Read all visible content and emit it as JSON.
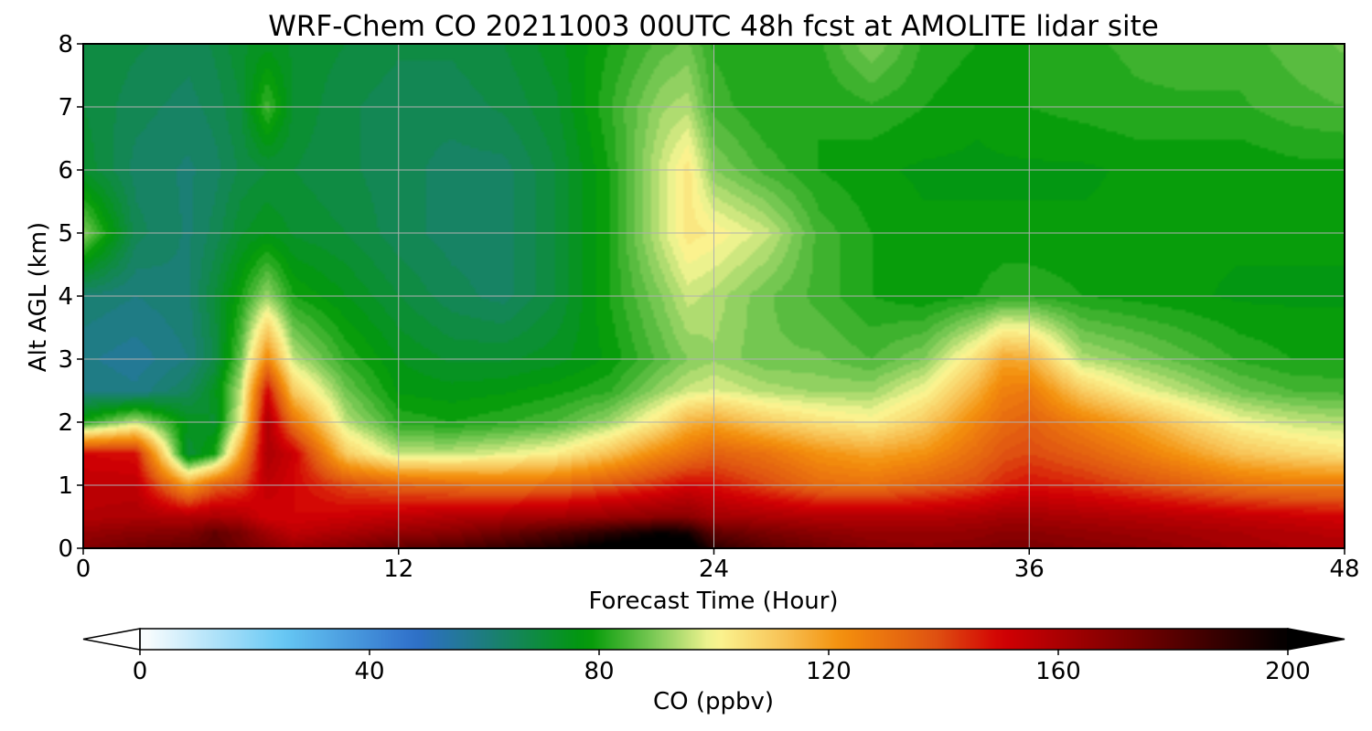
{
  "chart_data": {
    "type": "heatmap",
    "title": "WRF-Chem CO  20211003 00UTC 48h fcst at AMOLITE lidar site",
    "xlabel": "Forecast Time (Hour)",
    "ylabel": "Alt AGL (km)",
    "xlim": [
      0,
      48
    ],
    "ylim": [
      0,
      8
    ],
    "x_ticks": [
      0,
      12,
      24,
      36,
      48
    ],
    "y_ticks": [
      0,
      1,
      2,
      3,
      4,
      5,
      6,
      7,
      8
    ],
    "grid": true,
    "x": [
      0,
      2,
      4,
      5,
      6,
      7,
      8,
      10,
      12,
      14,
      16,
      18,
      20,
      22,
      23,
      24,
      26,
      28,
      30,
      32,
      34,
      35,
      36,
      38,
      40,
      42,
      44,
      46,
      48
    ],
    "y": [
      0,
      0.25,
      0.5,
      1.0,
      1.5,
      2.0,
      2.5,
      3.0,
      4.0,
      5.0,
      6.0,
      7.0,
      8.0
    ],
    "z": [
      [
        170,
        175,
        178,
        180,
        175,
        170,
        165,
        170,
        178,
        182,
        188,
        195,
        205,
        210,
        208,
        190,
        180,
        175,
        170,
        168,
        170,
        172,
        172,
        170,
        168,
        165,
        162,
        160,
        160
      ],
      [
        165,
        168,
        170,
        178,
        172,
        162,
        155,
        160,
        165,
        168,
        175,
        182,
        190,
        198,
        195,
        178,
        172,
        168,
        165,
        165,
        166,
        168,
        168,
        166,
        164,
        162,
        160,
        158,
        156
      ],
      [
        158,
        160,
        158,
        160,
        158,
        150,
        150,
        152,
        155,
        158,
        160,
        162,
        165,
        168,
        168,
        162,
        160,
        158,
        158,
        158,
        160,
        162,
        162,
        160,
        158,
        156,
        154,
        152,
        150
      ],
      [
        155,
        155,
        120,
        135,
        140,
        155,
        150,
        140,
        135,
        132,
        130,
        132,
        138,
        145,
        150,
        148,
        140,
        132,
        130,
        135,
        140,
        145,
        148,
        145,
        140,
        135,
        130,
        128,
        128
      ],
      [
        150,
        148,
        70,
        80,
        120,
        160,
        152,
        110,
        95,
        95,
        98,
        102,
        112,
        125,
        130,
        135,
        130,
        122,
        118,
        122,
        132,
        138,
        140,
        135,
        128,
        120,
        112,
        108,
        105
      ],
      [
        80,
        95,
        75,
        72,
        100,
        160,
        130,
        95,
        82,
        80,
        82,
        85,
        92,
        105,
        115,
        118,
        110,
        105,
        102,
        110,
        125,
        132,
        135,
        126,
        118,
        108,
        100,
        96,
        94
      ],
      [
        60,
        58,
        65,
        74,
        95,
        150,
        110,
        88,
        77,
        76,
        77,
        79,
        82,
        92,
        96,
        98,
        94,
        92,
        92,
        100,
        116,
        126,
        128,
        110,
        100,
        94,
        88,
        85,
        84
      ],
      [
        58,
        56,
        60,
        68,
        88,
        125,
        95,
        82,
        75,
        72,
        72,
        74,
        78,
        86,
        90,
        92,
        88,
        88,
        85,
        90,
        106,
        118,
        116,
        94,
        90,
        86,
        82,
        80,
        80
      ],
      [
        62,
        60,
        62,
        70,
        80,
        92,
        80,
        75,
        70,
        66,
        64,
        70,
        80,
        90,
        96,
        94,
        88,
        84,
        80,
        78,
        80,
        82,
        82,
        80,
        79,
        78,
        77,
        77,
        77
      ],
      [
        90,
        66,
        62,
        66,
        72,
        75,
        72,
        70,
        66,
        64,
        64,
        70,
        80,
        96,
        104,
        102,
        96,
        84,
        80,
        78,
        78,
        78,
        78,
        78,
        78,
        78,
        78,
        78,
        78
      ],
      [
        72,
        64,
        62,
        64,
        68,
        70,
        70,
        68,
        66,
        64,
        64,
        70,
        80,
        96,
        104,
        90,
        84,
        80,
        78,
        77,
        77,
        77,
        77,
        77,
        78,
        78,
        78,
        79,
        79
      ],
      [
        70,
        66,
        64,
        66,
        70,
        84,
        72,
        68,
        66,
        66,
        68,
        72,
        82,
        92,
        94,
        84,
        80,
        80,
        82,
        80,
        78,
        79,
        80,
        81,
        82,
        82,
        82,
        84,
        85
      ],
      [
        70,
        68,
        66,
        68,
        72,
        74,
        72,
        70,
        68,
        68,
        70,
        74,
        80,
        86,
        88,
        82,
        80,
        82,
        90,
        82,
        80,
        80,
        80,
        82,
        83,
        84,
        84,
        86,
        88
      ]
    ],
    "colorbar": {
      "label": "CO  (ppbv)",
      "min": 0,
      "max": 200,
      "ticks": [
        0,
        40,
        80,
        120,
        160,
        200
      ],
      "extend": "both",
      "stops": [
        {
          "v": 0,
          "c": "#ffffff"
        },
        {
          "v": 25,
          "c": "#66c8f4"
        },
        {
          "v": 48,
          "c": "#2f6fca"
        },
        {
          "v": 62,
          "c": "#1a8070"
        },
        {
          "v": 78,
          "c": "#009a06"
        },
        {
          "v": 90,
          "c": "#82cc5a"
        },
        {
          "v": 100,
          "c": "#fbf795"
        },
        {
          "v": 112,
          "c": "#f8c356"
        },
        {
          "v": 122,
          "c": "#f4900c"
        },
        {
          "v": 138,
          "c": "#e05512"
        },
        {
          "v": 150,
          "c": "#d30004"
        },
        {
          "v": 175,
          "c": "#6f0000"
        },
        {
          "v": 200,
          "c": "#000000"
        }
      ]
    }
  }
}
